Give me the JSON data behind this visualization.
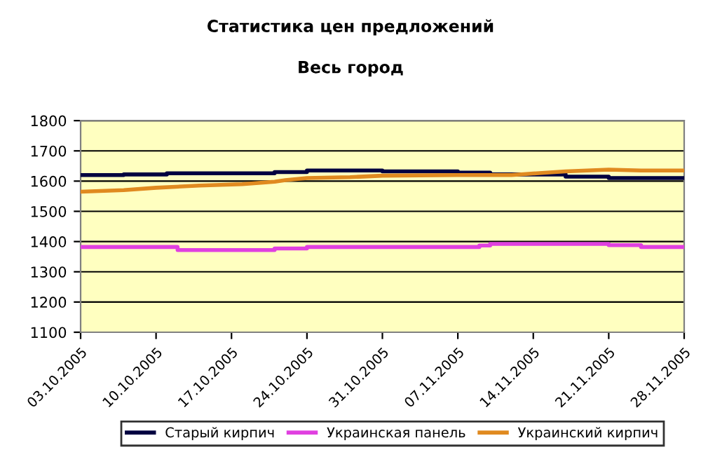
{
  "chart_data": {
    "type": "line",
    "title": "Статистика цен предложений",
    "subtitle": "Весь город",
    "xlim": [
      "2005-10-03",
      "2005-11-28"
    ],
    "xticks": [
      {
        "value": "2005-10-03",
        "label": "03.10.2005"
      },
      {
        "value": "2005-10-10",
        "label": "10.10.2005"
      },
      {
        "value": "2005-10-17",
        "label": "17.10.2005"
      },
      {
        "value": "2005-10-24",
        "label": "24.10.2005"
      },
      {
        "value": "2005-10-31",
        "label": "31.10.2005"
      },
      {
        "value": "2005-11-07",
        "label": "07.11.2005"
      },
      {
        "value": "2005-11-14",
        "label": "14.11.2005"
      },
      {
        "value": "2005-11-21",
        "label": "21.11.2005"
      },
      {
        "value": "2005-11-28",
        "label": "28.11.2005"
      }
    ],
    "ylim": [
      1100,
      1800
    ],
    "yticks": [
      1100,
      1200,
      1300,
      1400,
      1500,
      1600,
      1700,
      1800
    ],
    "grid": "y",
    "legend": "bottom",
    "series": [
      {
        "name": "Старый кирпич",
        "type": "step",
        "color": "#000040",
        "x": [
          "2005-10-03",
          "2005-10-07",
          "2005-10-11",
          "2005-10-21",
          "2005-10-24",
          "2005-10-31",
          "2005-11-07",
          "2005-11-10",
          "2005-11-17",
          "2005-11-21",
          "2005-11-28"
        ],
        "values": [
          1620,
          1622,
          1626,
          1630,
          1635,
          1632,
          1628,
          1622,
          1615,
          1610,
          1610
        ]
      },
      {
        "name": "Украинская панель",
        "type": "step",
        "color": "#e040e0",
        "x": [
          "2005-10-03",
          "2005-10-12",
          "2005-10-21",
          "2005-10-24",
          "2005-11-09",
          "2005-11-10",
          "2005-11-21",
          "2005-11-24",
          "2005-11-28"
        ],
        "values": [
          1382,
          1372,
          1377,
          1382,
          1387,
          1392,
          1388,
          1382,
          1382
        ]
      },
      {
        "name": "Украинский кирпич",
        "color": "#e08a20",
        "x": [
          "2005-10-03",
          "2005-10-07",
          "2005-10-10",
          "2005-10-14",
          "2005-10-18",
          "2005-10-21",
          "2005-10-22",
          "2005-10-24",
          "2005-10-28",
          "2005-10-31",
          "2005-11-07",
          "2005-11-12",
          "2005-11-14",
          "2005-11-17",
          "2005-11-21",
          "2005-11-24",
          "2005-11-28"
        ],
        "values": [
          1565,
          1570,
          1578,
          1585,
          1590,
          1598,
          1603,
          1610,
          1613,
          1618,
          1620,
          1620,
          1625,
          1632,
          1638,
          1635,
          1635
        ]
      }
    ]
  }
}
